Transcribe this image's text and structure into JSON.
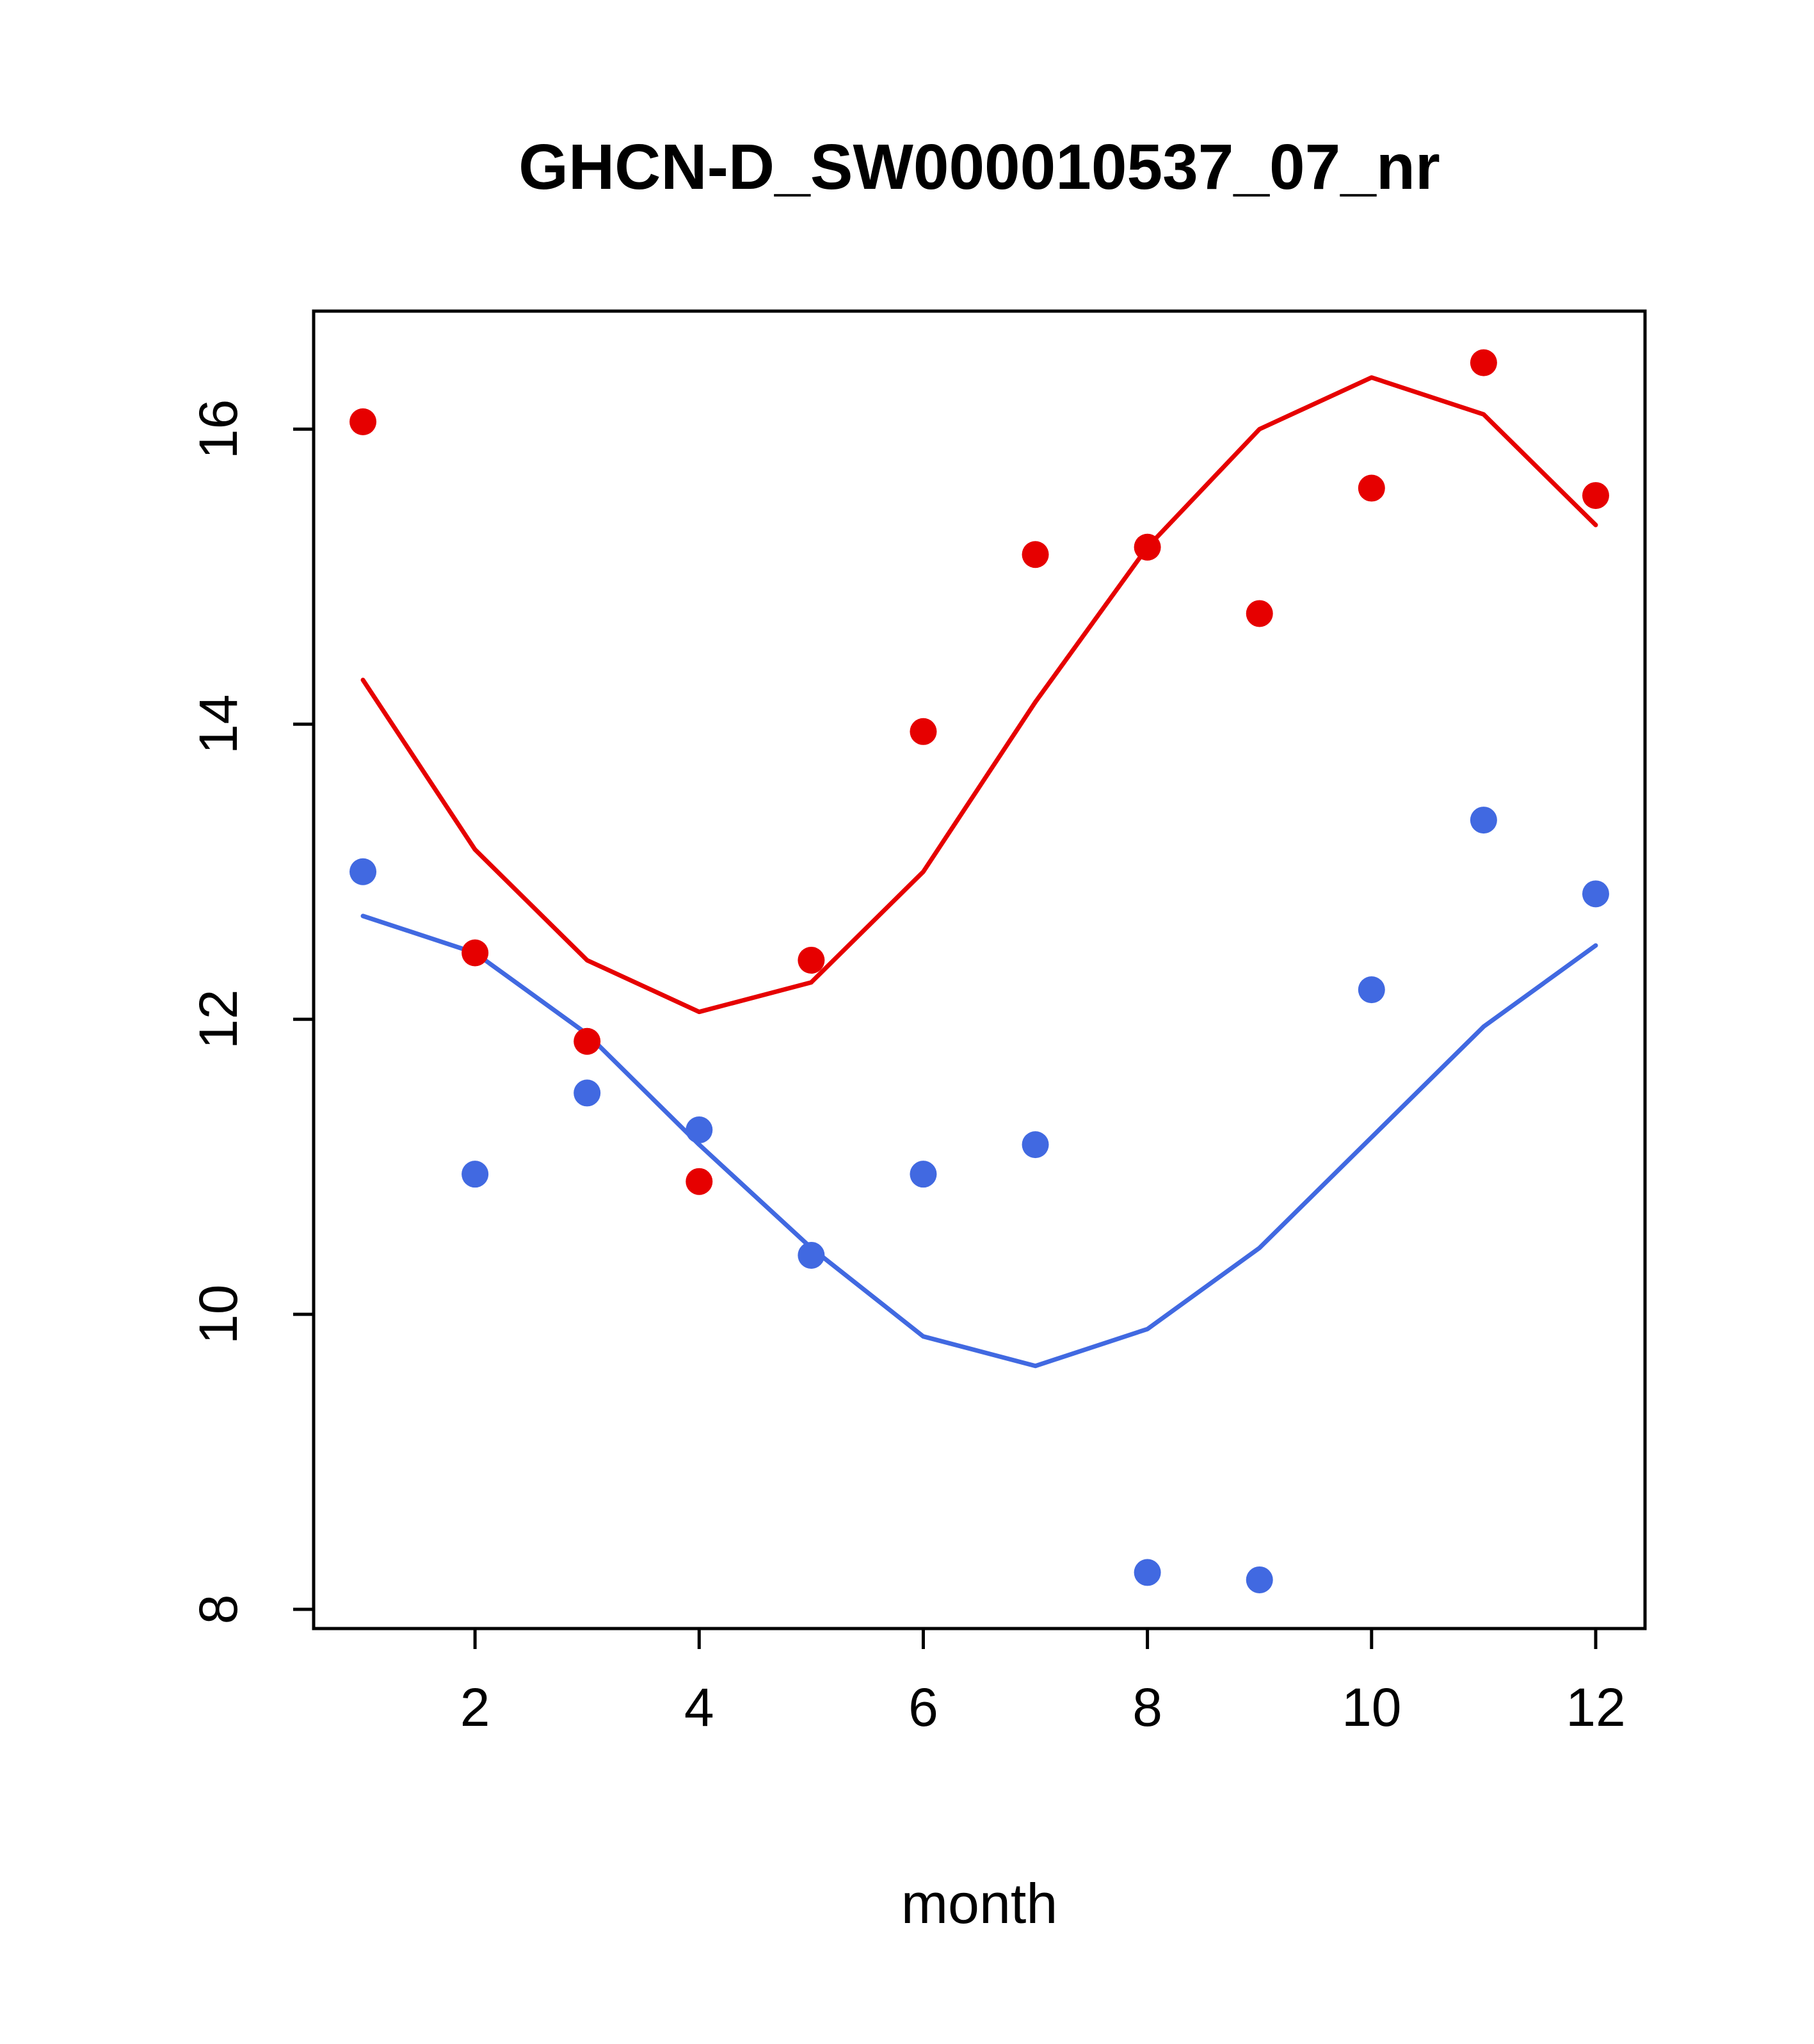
{
  "page": {
    "background": "#ffffff"
  },
  "chart_data": {
    "type": "scatter",
    "title": "GHCN-D_SW000010537_07_nr",
    "xlabel": "month",
    "ylabel": "",
    "grid": false,
    "legend": "none",
    "x": [
      1,
      2,
      3,
      4,
      5,
      6,
      7,
      8,
      9,
      10,
      11,
      12
    ],
    "xlim": [
      0.56,
      12.44
    ],
    "ylim": [
      7.87,
      16.8
    ],
    "xticks": [
      2,
      4,
      6,
      8,
      10,
      12
    ],
    "yticks": [
      8,
      10,
      12,
      14,
      16
    ],
    "colors": {
      "red_series": "#e60000",
      "blue_series": "#4169e1",
      "axis": "#000000"
    },
    "series": [
      {
        "name": "red-trend-line",
        "type": "line",
        "color": "#e60000",
        "values": [
          14.3,
          13.15,
          12.4,
          12.05,
          12.25,
          13.0,
          14.15,
          15.2,
          16.0,
          16.35,
          16.1,
          15.35
        ]
      },
      {
        "name": "blue-trend-line",
        "type": "line",
        "color": "#4169e1",
        "values": [
          12.7,
          12.45,
          11.9,
          11.15,
          10.45,
          9.85,
          9.65,
          9.9,
          10.45,
          11.2,
          11.95,
          12.5
        ]
      },
      {
        "name": "red-points",
        "type": "points",
        "color": "#e60000",
        "values": [
          16.05,
          12.45,
          11.85,
          10.9,
          12.4,
          13.95,
          15.15,
          15.2,
          14.75,
          15.6,
          16.45,
          15.55
        ]
      },
      {
        "name": "blue-points",
        "type": "points",
        "color": "#4169e1",
        "values": [
          13.0,
          10.95,
          11.5,
          11.25,
          10.4,
          10.95,
          11.15,
          8.25,
          8.2,
          12.2,
          13.35,
          12.85
        ]
      }
    ]
  }
}
